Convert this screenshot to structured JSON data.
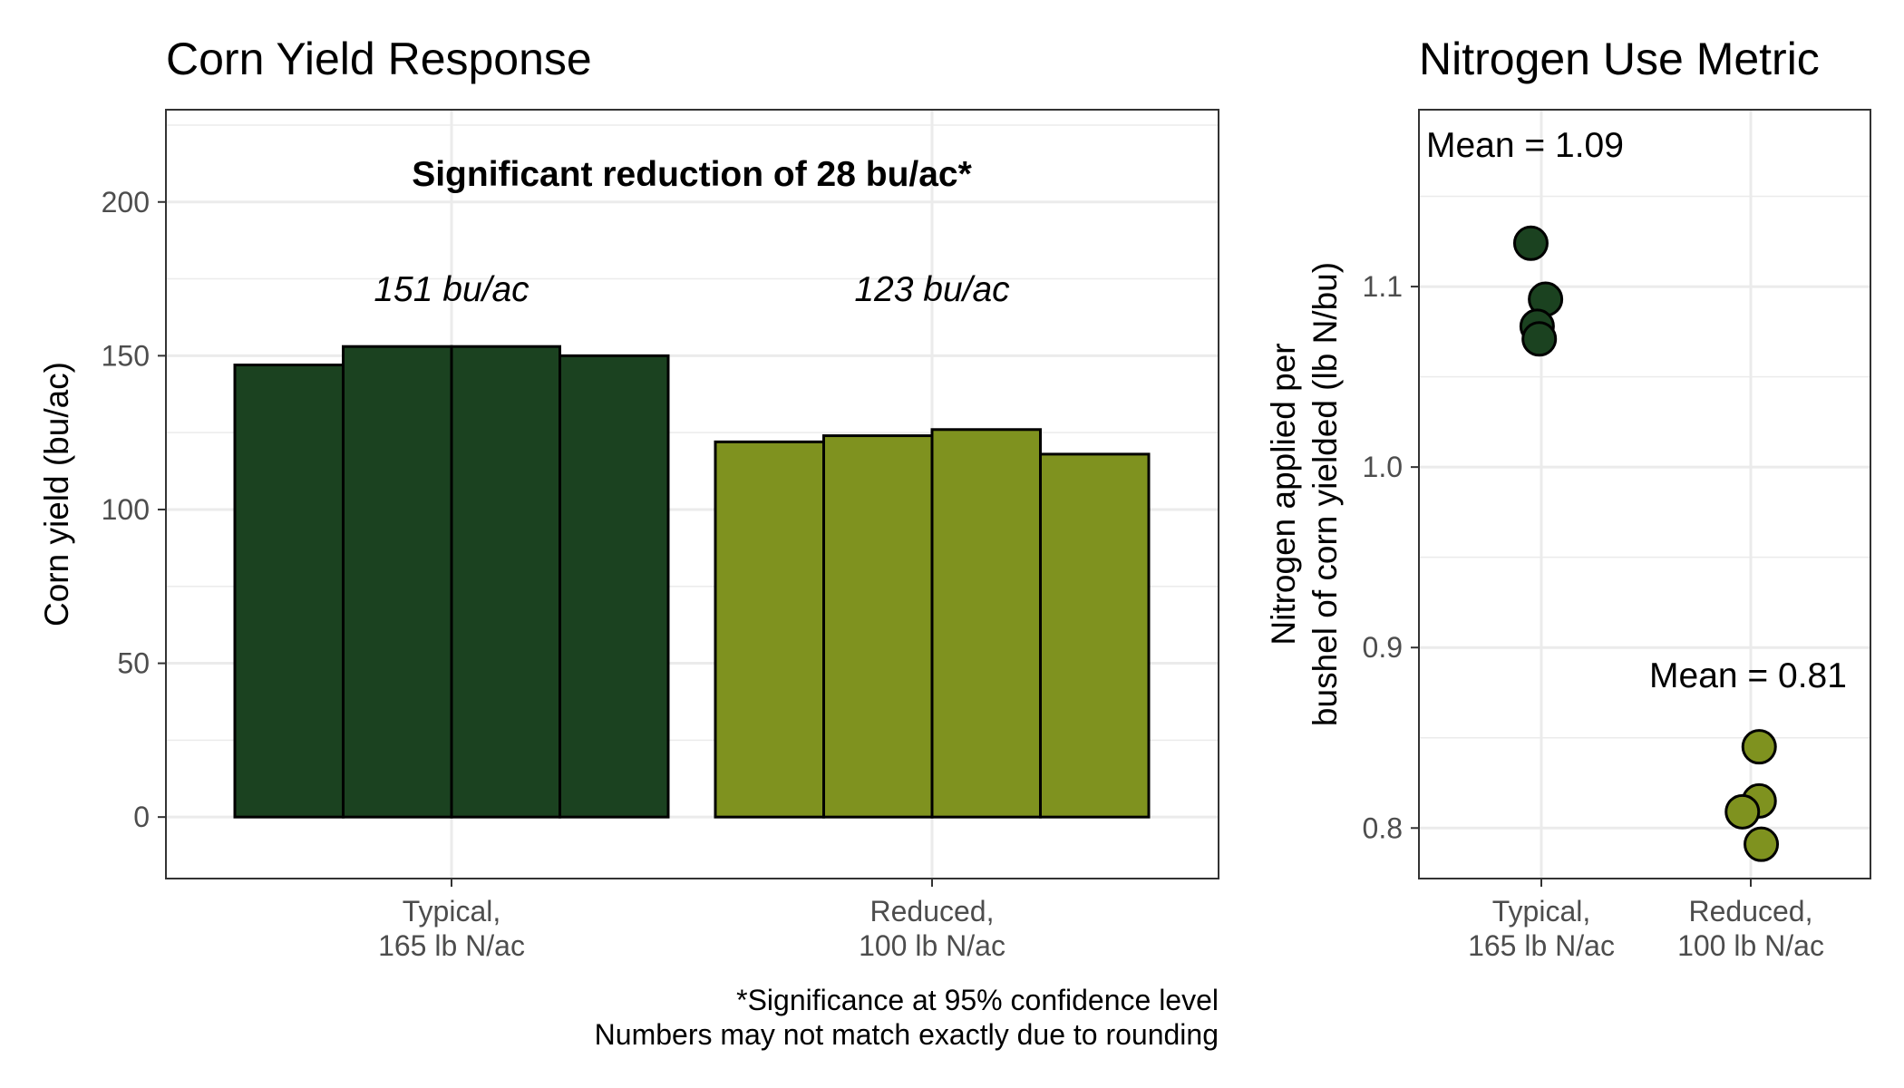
{
  "colors": {
    "typical": "#1b4220",
    "reduced": "#7f921f",
    "grid": "#ebebeb",
    "panel_border": "#333333",
    "axis_text": "#4d4d4d",
    "text": "#000000"
  },
  "chart_data": [
    {
      "type": "bar",
      "title": "Corn Yield Response",
      "xlabel": "",
      "ylabel": "Corn yield (bu/ac)",
      "ylim": [
        -20,
        230
      ],
      "yticks": [
        0,
        50,
        100,
        150,
        200
      ],
      "grid": true,
      "categories": [
        "Typical,\n165 lb N/ac",
        "Reduced,\n100 lb N/ac"
      ],
      "bars": [
        {
          "group": 0,
          "value": 147
        },
        {
          "group": 0,
          "value": 153
        },
        {
          "group": 0,
          "value": 153
        },
        {
          "group": 0,
          "value": 150
        },
        {
          "group": 1,
          "value": 122
        },
        {
          "group": 1,
          "value": 124
        },
        {
          "group": 1,
          "value": 126
        },
        {
          "group": 1,
          "value": 118
        }
      ],
      "means": [
        "151 bu/ac",
        "123 bu/ac"
      ],
      "headline": "Significant reduction of 28 bu/ac*",
      "footnote": [
        "*Significance at 95% confidence level",
        "Numbers may not match exactly due to rounding"
      ]
    },
    {
      "type": "scatter",
      "title": "Nitrogen Use Metric",
      "xlabel": "",
      "ylabel": [
        "Nitrogen applied per",
        "bushel of corn yielded (lb N/bu)"
      ],
      "ylim": [
        0.772,
        1.198
      ],
      "yticks": [
        0.8,
        0.9,
        1.0,
        1.1
      ],
      "ytick_labels": [
        "0.8",
        "0.9",
        "1.0",
        "1.1"
      ],
      "grid": true,
      "categories": [
        "Typical,\n165 lb N/ac",
        "Reduced,\n100 lb N/ac"
      ],
      "points": [
        {
          "group": 0,
          "jitter": -0.05,
          "y": 1.124
        },
        {
          "group": 0,
          "jitter": 0.02,
          "y": 1.093
        },
        {
          "group": 0,
          "jitter": -0.02,
          "y": 1.078
        },
        {
          "group": 0,
          "jitter": -0.01,
          "y": 1.071
        },
        {
          "group": 1,
          "jitter": 0.04,
          "y": 0.845
        },
        {
          "group": 1,
          "jitter": 0.04,
          "y": 0.815
        },
        {
          "group": 1,
          "jitter": -0.04,
          "y": 0.809
        },
        {
          "group": 1,
          "jitter": 0.05,
          "y": 0.791
        }
      ],
      "mean_labels": [
        "Mean = 1.09",
        "Mean = 0.81"
      ]
    }
  ]
}
